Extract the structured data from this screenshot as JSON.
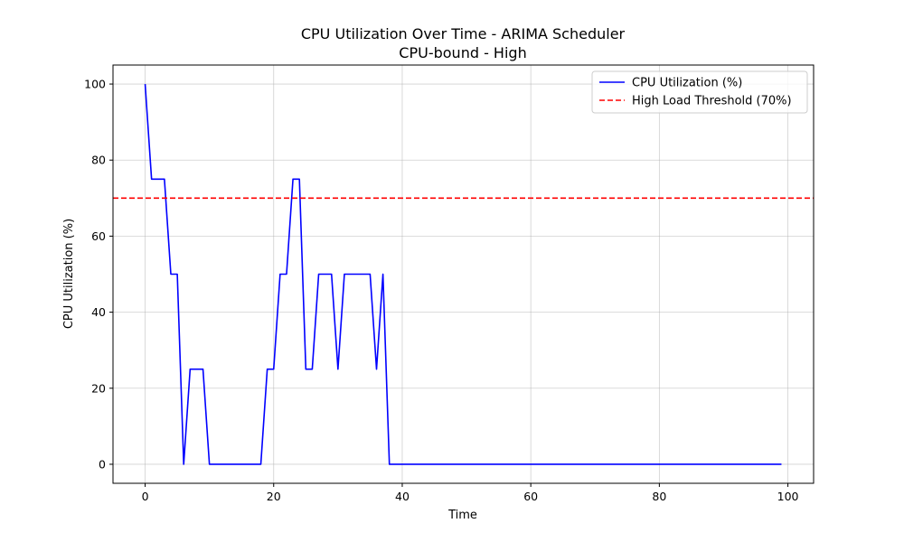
{
  "chart_data": {
    "type": "line",
    "title": "CPU Utilization Over Time - ARIMA Scheduler",
    "subtitle": "CPU-bound - High",
    "xlabel": "Time",
    "ylabel": "CPU Utilization (%)",
    "xlim": [
      -5,
      104
    ],
    "ylim": [
      -5,
      105
    ],
    "xticks": [
      0,
      20,
      40,
      60,
      80,
      100
    ],
    "yticks": [
      0,
      20,
      40,
      60,
      80,
      100
    ],
    "grid": true,
    "legend_position": "top-right",
    "series": [
      {
        "name": "CPU Utilization (%)",
        "color": "#0000ff",
        "style": "solid",
        "x": [
          0,
          1,
          2,
          3,
          4,
          5,
          6,
          7,
          8,
          9,
          10,
          11,
          12,
          13,
          14,
          15,
          16,
          17,
          18,
          19,
          20,
          21,
          22,
          23,
          24,
          25,
          26,
          27,
          28,
          29,
          30,
          31,
          32,
          33,
          34,
          35,
          36,
          37,
          38,
          39,
          40,
          41,
          42,
          43,
          44,
          45,
          46,
          47,
          48,
          49,
          50,
          51,
          52,
          53,
          54,
          55,
          56,
          57,
          58,
          59,
          60,
          61,
          62,
          63,
          64,
          65,
          66,
          67,
          68,
          69,
          70,
          71,
          72,
          73,
          74,
          75,
          76,
          77,
          78,
          79,
          80,
          81,
          82,
          83,
          84,
          85,
          86,
          87,
          88,
          89,
          90,
          91,
          92,
          93,
          94,
          95,
          96,
          97,
          98,
          99
        ],
        "y": [
          100,
          75,
          75,
          75,
          50,
          50,
          0,
          25,
          25,
          25,
          0,
          0,
          0,
          0,
          0,
          0,
          0,
          0,
          0,
          25,
          25,
          50,
          50,
          75,
          75,
          25,
          25,
          50,
          50,
          50,
          25,
          50,
          50,
          50,
          50,
          50,
          25,
          50,
          0,
          0,
          0,
          0,
          0,
          0,
          0,
          0,
          0,
          0,
          0,
          0,
          0,
          0,
          0,
          0,
          0,
          0,
          0,
          0,
          0,
          0,
          0,
          0,
          0,
          0,
          0,
          0,
          0,
          0,
          0,
          0,
          0,
          0,
          0,
          0,
          0,
          0,
          0,
          0,
          0,
          0,
          0,
          0,
          0,
          0,
          0,
          0,
          0,
          0,
          0,
          0,
          0,
          0,
          0,
          0,
          0,
          0,
          0,
          0,
          0,
          0
        ]
      },
      {
        "name": "High Load Threshold (70%)",
        "color": "#ff0000",
        "style": "dashed",
        "y_constant": 70
      }
    ]
  }
}
